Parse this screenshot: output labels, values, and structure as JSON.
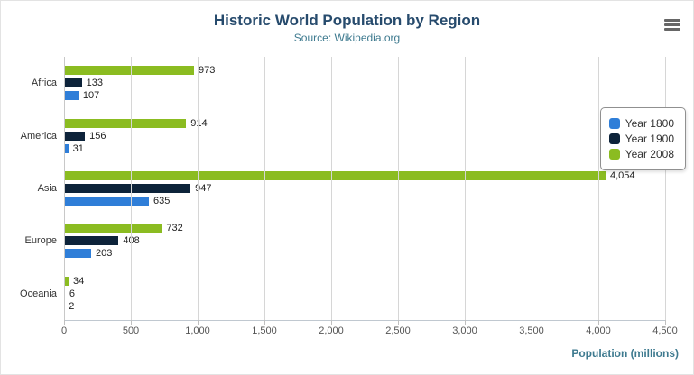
{
  "header": {
    "title": "Historic World Population by Region",
    "subtitle": "Source: Wikipedia.org"
  },
  "menu_icon": "hamburger-menu-icon",
  "chart_data": {
    "type": "bar",
    "orientation": "horizontal",
    "title": "Historic World Population by Region",
    "subtitle": "Source: Wikipedia.org",
    "categories": [
      "Africa",
      "America",
      "Asia",
      "Europe",
      "Oceania"
    ],
    "series": [
      {
        "name": "Year 1800",
        "color": "#2f7ed8",
        "values": [
          107,
          31,
          635,
          203,
          2
        ]
      },
      {
        "name": "Year 1900",
        "color": "#0d233a",
        "values": [
          133,
          156,
          947,
          408,
          6
        ]
      },
      {
        "name": "Year 2008",
        "color": "#8bbc21",
        "values": [
          973,
          914,
          4054,
          732,
          34
        ]
      }
    ],
    "draw_order_top_to_bottom": [
      "Year 2008",
      "Year 1900",
      "Year 1800"
    ],
    "xlabel": "Population (millions)",
    "ylabel": "",
    "xlim": [
      0,
      4500
    ],
    "ticks": [
      0,
      500,
      1000,
      1500,
      2000,
      2500,
      3000,
      3500,
      4000,
      4500
    ],
    "tick_labels": [
      "0",
      "500",
      "1,000",
      "1,500",
      "2,000",
      "2,500",
      "3,000",
      "3,500",
      "4,000",
      "4,500"
    ],
    "data_labels": {
      "Africa": [
        "107",
        "133",
        "973"
      ],
      "America": [
        "31",
        "156",
        "914"
      ],
      "Asia": [
        "635",
        "947",
        "4,054"
      ],
      "Europe": [
        "203",
        "408",
        "732"
      ],
      "Oceania": [
        "2",
        "6",
        "34"
      ]
    },
    "grid": true,
    "legend_position": "right",
    "legend": [
      "Year 1800",
      "Year 1900",
      "Year 2008"
    ]
  }
}
